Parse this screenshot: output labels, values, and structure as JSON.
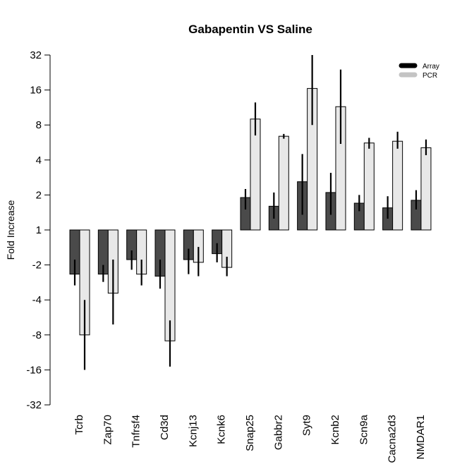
{
  "chart_data": {
    "type": "bar",
    "title": "Gabapentin VS Saline",
    "ylabel": "Fold Increase",
    "xlabel": "",
    "y_scale": "log2-fold-change",
    "ylim": [
      -32,
      32
    ],
    "yticks": [
      "32",
      "16",
      "8",
      "4",
      "2",
      "1",
      "-2",
      "-4",
      "-8",
      "-16",
      "-32"
    ],
    "legend_position": "top-right",
    "categories": [
      "Tcrb",
      "Zap70",
      "Tnfrsf4",
      "Cd3d",
      "Kcnj13",
      "Kcnk6",
      "Snap25",
      "Gabbr2",
      "Syt9",
      "Kcnb2",
      "Scn9a",
      "Cacna2d3",
      "NMDAR1"
    ],
    "series": [
      {
        "name": "Array",
        "color": "#4a4a4a",
        "values": [
          -2.4,
          -2.4,
          -1.8,
          -2.5,
          -1.8,
          -1.6,
          1.9,
          1.6,
          2.6,
          2.1,
          1.7,
          1.55,
          1.8
        ],
        "error_low": [
          -3.0,
          -2.8,
          -2.2,
          -3.2,
          -2.4,
          -1.9,
          1.5,
          1.25,
          1.35,
          1.35,
          1.45,
          1.25,
          1.5
        ],
        "error_high": [
          -1.8,
          -2.0,
          -1.5,
          -1.8,
          -1.45,
          -1.3,
          2.25,
          2.1,
          4.5,
          3.1,
          2.0,
          1.95,
          2.2
        ]
      },
      {
        "name": "PCR",
        "color": "#e8e8e8",
        "values": [
          -8.0,
          -3.5,
          -2.4,
          -9.0,
          -1.9,
          -2.1,
          9.0,
          6.4,
          16.5,
          11.5,
          5.6,
          5.8,
          5.1
        ],
        "error_low": [
          -16.0,
          -6.5,
          -3.0,
          -15.0,
          -2.5,
          -2.5,
          6.5,
          6.1,
          8.0,
          5.5,
          5.0,
          5.0,
          4.4
        ],
        "error_high": [
          -4.0,
          -1.8,
          -1.8,
          -6.0,
          -1.4,
          -1.7,
          12.5,
          6.7,
          32.0,
          24.0,
          6.2,
          7.0,
          6.0
        ]
      }
    ]
  }
}
